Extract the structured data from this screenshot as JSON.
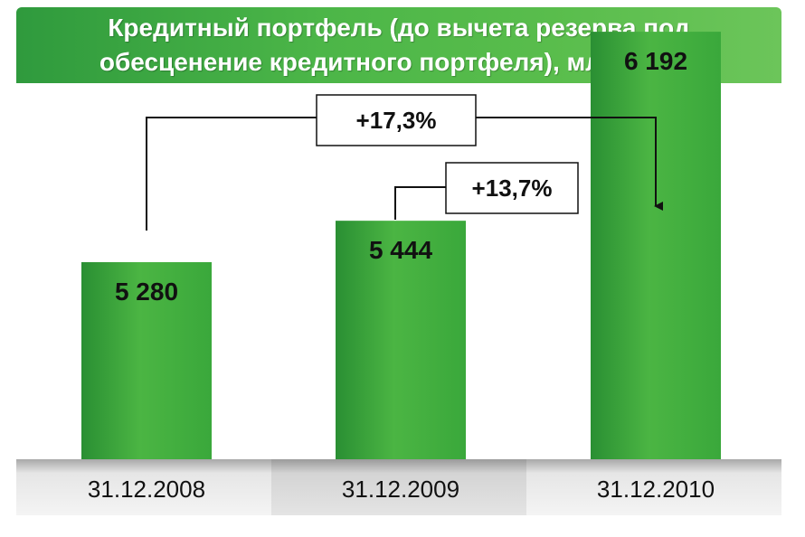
{
  "chart_data": {
    "type": "bar",
    "title": "Кредитный портфель (до вычета резерва под обесценение кредитного портфеля), млрд. руб.",
    "categories": [
      "31.12.2008",
      "31.12.2009",
      "31.12.2010"
    ],
    "values": [
      5280,
      5444,
      6192
    ],
    "value_labels": [
      "5 280",
      "5 444",
      "6 192"
    ],
    "growth": [
      {
        "from": "31.12.2008",
        "to": "31.12.2010",
        "label": "+17,3%"
      },
      {
        "from": "31.12.2009",
        "to": "31.12.2010",
        "label": "+13,7%"
      }
    ],
    "grid": false,
    "legend": "none",
    "colors": {
      "bar_light": "#4bb543",
      "bar_dark": "#2f9a37",
      "banner": "#4cb648",
      "category_band": "#d6d6d6"
    }
  }
}
